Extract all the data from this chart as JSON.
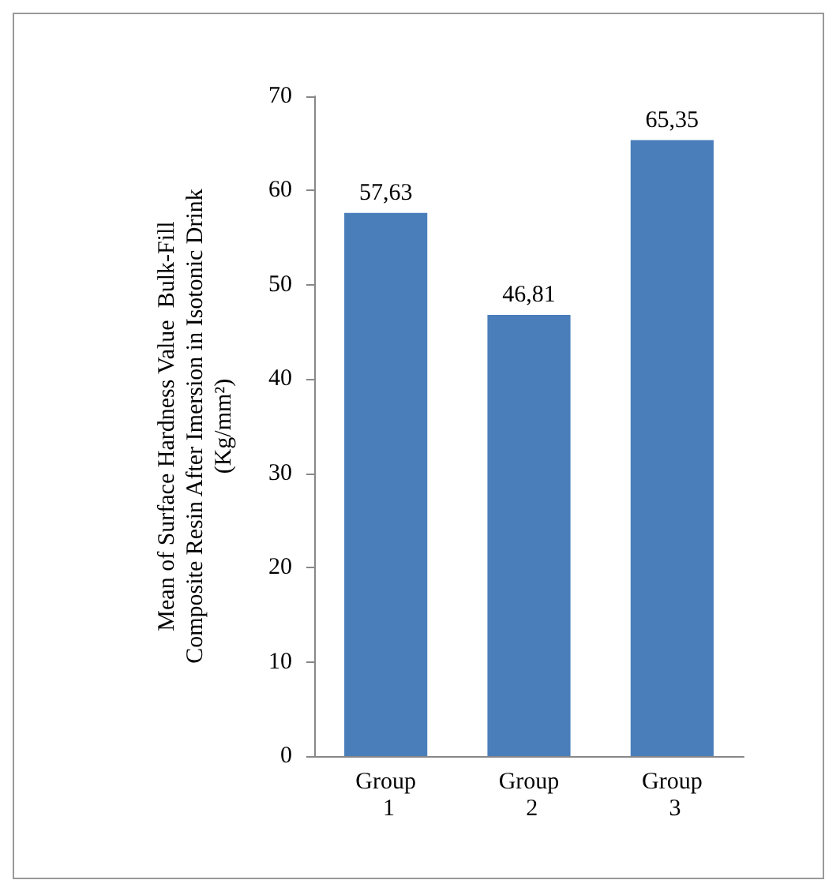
{
  "chart_data": {
    "type": "bar",
    "ylabel": "Mean of Surface Hardness Value  Bulk-Fill\nComposite Resin After Imersion in Isotonic Drink\n(Kg/mm²)",
    "categories": [
      "Group 1",
      "Group 2",
      "Group 3"
    ],
    "values": [
      57.63,
      46.81,
      65.35
    ],
    "color": "#4a7ebb",
    "value_labels": [
      "57,63",
      "46,81",
      "65,35"
    ],
    "ylim": [
      0,
      70
    ],
    "yticks": [
      0,
      10,
      20,
      30,
      40,
      50,
      60,
      70
    ],
    "grid": false
  }
}
